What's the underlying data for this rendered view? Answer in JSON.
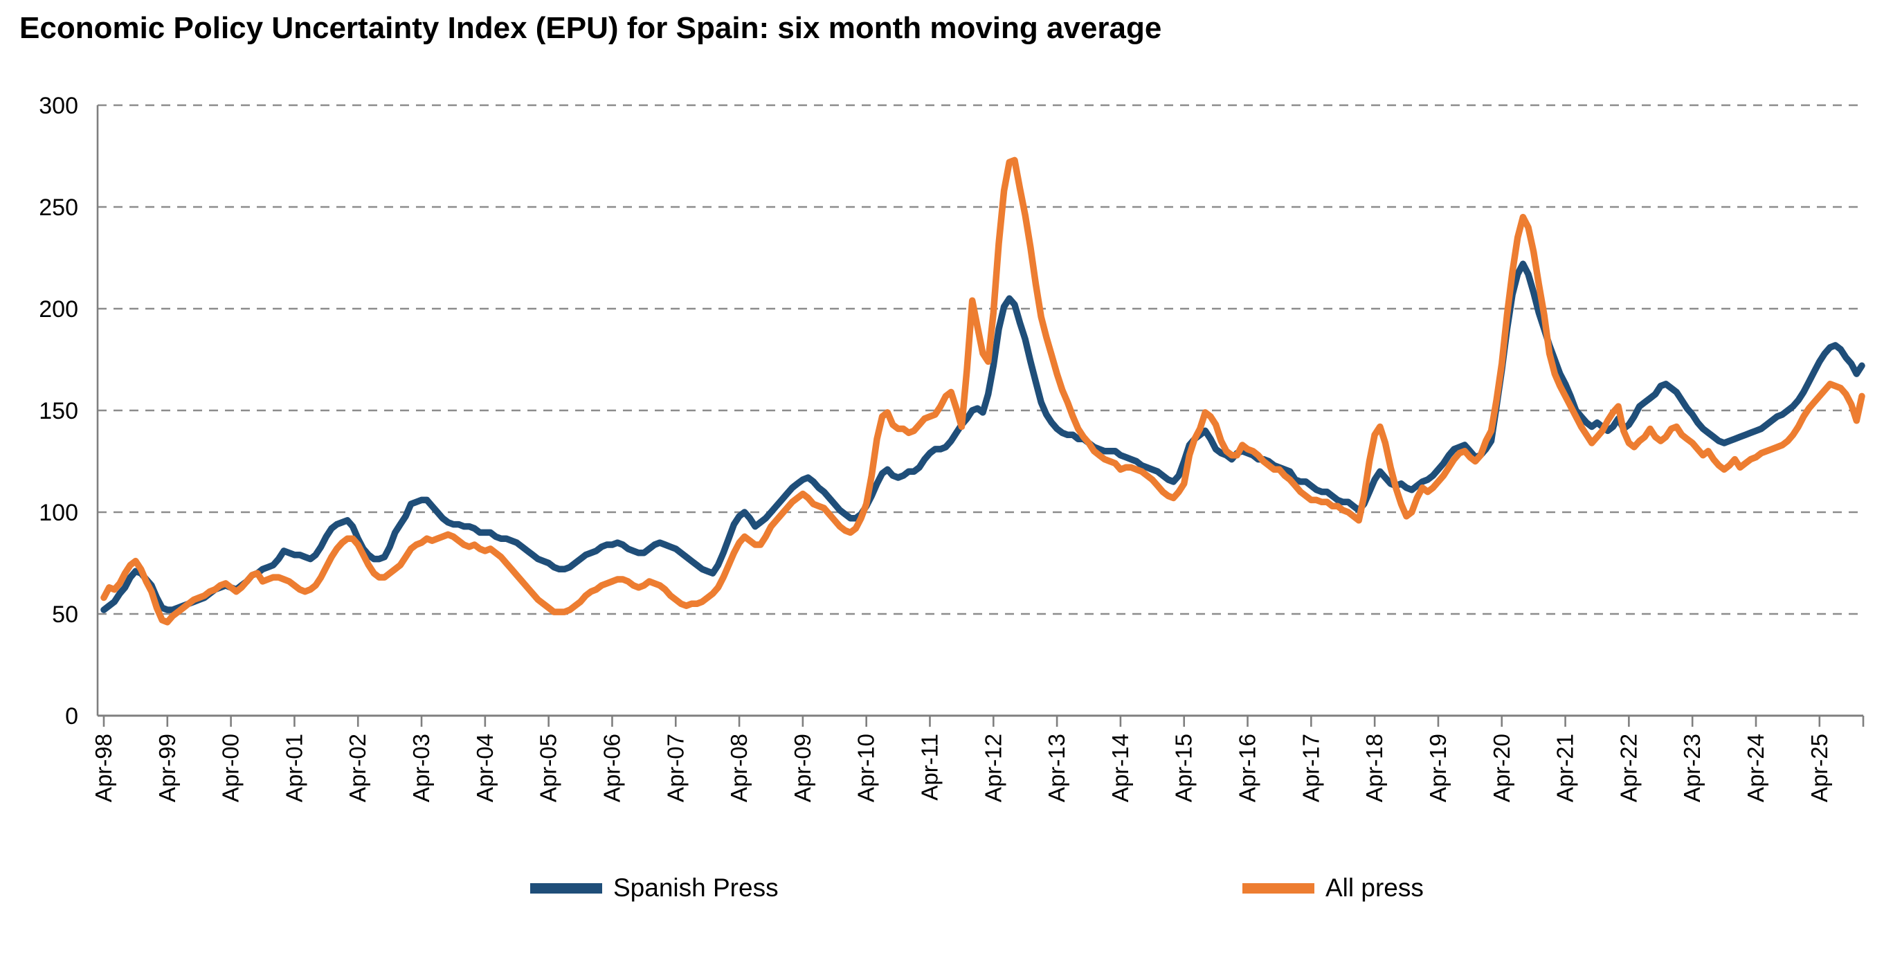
{
  "title": "Economic Policy Uncertainty Index (EPU) for Spain: six month moving average",
  "colors": {
    "background": "#ffffff",
    "grid": "#8c8c8c",
    "axis": "#7f7f7f",
    "text": "#000000"
  },
  "chart_data": {
    "type": "line",
    "title": "Economic Policy Uncertainty Index (EPU) for Spain: six month moving average",
    "x_start": "Apr-1998",
    "frequency": "monthly",
    "grid": "horizontal dashed",
    "legend_position": "bottom",
    "ylim": [
      0,
      300
    ],
    "y_ticks": [
      300,
      250,
      200,
      150,
      100,
      50,
      0
    ],
    "x_tick_interval_months": 12,
    "x_tick_labels": [
      "Apr-98",
      "Apr-99",
      "Apr-00",
      "Apr-01",
      "Apr-02",
      "Apr-03",
      "Apr-04",
      "Apr-05",
      "Apr-06",
      "Apr-07",
      "Apr-08",
      "Apr-09",
      "Apr-10",
      "Apr-11",
      "Apr-12",
      "Apr-13",
      "Apr-14",
      "Apr-15",
      "Apr-16",
      "Apr-17",
      "Apr-18",
      "Apr-19",
      "Apr-20",
      "Apr-21",
      "Apr-22",
      "Apr-23",
      "Apr-24",
      "Apr-25"
    ],
    "series": [
      {
        "name": "Spanish Press",
        "color": "#1f4e79",
        "values": [
          52,
          54,
          56,
          60,
          63,
          68,
          71,
          70,
          67,
          64,
          58,
          53,
          52,
          52,
          53,
          54,
          55,
          56,
          57,
          58,
          60,
          62,
          63,
          64,
          63,
          62,
          64,
          66,
          69,
          70,
          72,
          73,
          74,
          77,
          81,
          80,
          79,
          79,
          78,
          77,
          79,
          83,
          88,
          92,
          94,
          95,
          96,
          93,
          87,
          82,
          79,
          77,
          77,
          78,
          83,
          90,
          94,
          98,
          104,
          105,
          106,
          106,
          103,
          100,
          97,
          95,
          94,
          94,
          93,
          93,
          92,
          90,
          90,
          90,
          88,
          87,
          87,
          86,
          85,
          83,
          81,
          79,
          77,
          76,
          75,
          73,
          72,
          72,
          73,
          75,
          77,
          79,
          80,
          81,
          83,
          84,
          84,
          85,
          84,
          82,
          81,
          80,
          80,
          82,
          84,
          85,
          84,
          83,
          82,
          80,
          78,
          76,
          74,
          72,
          71,
          70,
          74,
          80,
          87,
          94,
          98,
          100,
          97,
          93,
          95,
          97,
          100,
          103,
          106,
          109,
          112,
          114,
          116,
          117,
          115,
          112,
          110,
          107,
          104,
          101,
          99,
          97,
          97,
          99,
          103,
          108,
          114,
          119,
          121,
          118,
          117,
          118,
          120,
          120,
          122,
          126,
          129,
          131,
          131,
          132,
          135,
          139,
          143,
          146,
          150,
          151,
          149,
          158,
          172,
          190,
          201,
          205,
          202,
          193,
          185,
          174,
          164,
          154,
          148,
          144,
          141,
          139,
          138,
          138,
          136,
          136,
          134,
          132,
          131,
          130,
          130,
          130,
          128,
          127,
          126,
          125,
          123,
          122,
          121,
          120,
          118,
          116,
          115,
          118,
          125,
          133,
          136,
          138,
          140,
          136,
          131,
          129,
          128,
          126,
          129,
          130,
          129,
          128,
          126,
          126,
          125,
          123,
          122,
          121,
          120,
          116,
          115,
          115,
          113,
          111,
          110,
          110,
          108,
          106,
          105,
          105,
          103,
          101,
          104,
          110,
          116,
          120,
          117,
          114,
          113,
          114,
          112,
          111,
          113,
          115,
          116,
          118,
          121,
          124,
          128,
          131,
          132,
          133,
          130,
          127,
          128,
          131,
          135,
          152,
          170,
          190,
          207,
          217,
          222,
          217,
          208,
          198,
          190,
          182,
          175,
          168,
          163,
          157,
          150,
          147,
          144,
          142,
          144,
          142,
          140,
          142,
          146,
          141,
          143,
          147,
          152,
          154,
          156,
          158,
          162,
          163,
          161,
          159,
          155,
          151,
          148,
          144,
          141,
          139,
          137,
          135,
          134,
          135,
          136,
          137,
          138,
          139,
          140,
          141,
          143,
          145,
          147,
          148,
          150,
          152,
          155,
          159,
          164,
          169,
          174,
          178,
          181,
          182,
          180,
          176,
          173,
          168,
          172
        ]
      },
      {
        "name": "All press",
        "color": "#ed7d31",
        "values": [
          58,
          63,
          62,
          65,
          70,
          74,
          76,
          72,
          66,
          61,
          53,
          47,
          46,
          49,
          51,
          53,
          55,
          57,
          58,
          59,
          61,
          62,
          64,
          65,
          63,
          61,
          63,
          66,
          69,
          70,
          66,
          67,
          68,
          68,
          67,
          66,
          64,
          62,
          61,
          62,
          64,
          68,
          73,
          78,
          82,
          85,
          87,
          87,
          84,
          79,
          74,
          70,
          68,
          68,
          70,
          72,
          74,
          78,
          82,
          84,
          85,
          87,
          86,
          87,
          88,
          89,
          88,
          86,
          84,
          83,
          84,
          82,
          81,
          82,
          80,
          78,
          75,
          72,
          69,
          66,
          63,
          60,
          57,
          55,
          53,
          51,
          51,
          51,
          52,
          54,
          56,
          59,
          61,
          62,
          64,
          65,
          66,
          67,
          67,
          66,
          64,
          63,
          64,
          66,
          65,
          64,
          62,
          59,
          57,
          55,
          54,
          55,
          55,
          56,
          58,
          60,
          63,
          68,
          74,
          80,
          85,
          88,
          86,
          84,
          84,
          88,
          93,
          96,
          99,
          102,
          105,
          107,
          109,
          107,
          104,
          103,
          102,
          99,
          96,
          93,
          91,
          90,
          92,
          97,
          104,
          118,
          136,
          147,
          149,
          143,
          141,
          141,
          139,
          140,
          143,
          146,
          147,
          148,
          152,
          157,
          159,
          151,
          142,
          170,
          204,
          191,
          178,
          174,
          198,
          232,
          258,
          272,
          273,
          259,
          246,
          230,
          212,
          196,
          186,
          177,
          168,
          160,
          154,
          147,
          141,
          137,
          134,
          130,
          128,
          126,
          125,
          124,
          121,
          122,
          122,
          121,
          120,
          118,
          116,
          113,
          110,
          108,
          107,
          110,
          114,
          128,
          136,
          141,
          149,
          147,
          143,
          135,
          130,
          128,
          128,
          133,
          131,
          130,
          128,
          125,
          123,
          121,
          121,
          118,
          116,
          113,
          110,
          108,
          106,
          106,
          105,
          105,
          103,
          103,
          101,
          100,
          98,
          96,
          108,
          125,
          138,
          142,
          134,
          122,
          112,
          104,
          98,
          100,
          107,
          112,
          110,
          112,
          115,
          118,
          122,
          126,
          129,
          130,
          127,
          125,
          128,
          135,
          140,
          155,
          173,
          197,
          218,
          235,
          245,
          240,
          228,
          212,
          197,
          178,
          168,
          162,
          157,
          152,
          147,
          142,
          138,
          134,
          137,
          140,
          145,
          149,
          152,
          140,
          134,
          132,
          135,
          137,
          141,
          137,
          135,
          137,
          141,
          142,
          138,
          136,
          134,
          131,
          128,
          130,
          126,
          123,
          121,
          123,
          126,
          122,
          124,
          126,
          127,
          129,
          130,
          131,
          132,
          133,
          135,
          138,
          142,
          147,
          151,
          154,
          157,
          160,
          163,
          162,
          161,
          158,
          153,
          145,
          157
        ]
      }
    ]
  }
}
